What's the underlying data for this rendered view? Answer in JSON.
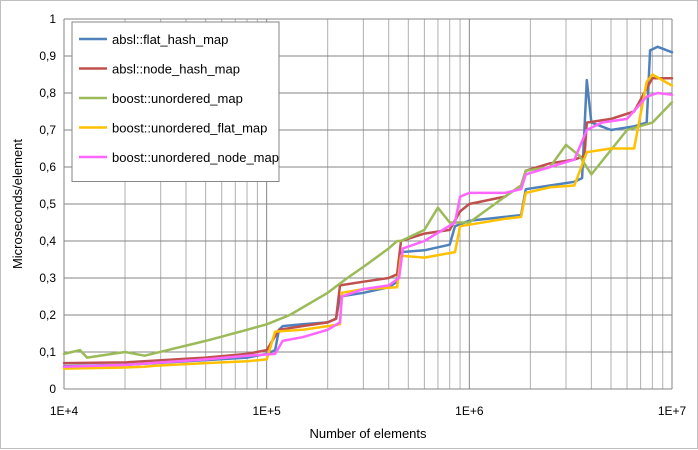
{
  "chart_data": {
    "type": "line",
    "xlabel": "Number of elements",
    "ylabel": "Microseconds/element",
    "xscale": "log",
    "xlim": [
      10000,
      10000000
    ],
    "ylim": [
      0,
      1
    ],
    "x_tick_labels": [
      "1E+4",
      "1E+5",
      "1E+6",
      "1E+7"
    ],
    "y_tick_labels": [
      "0",
      "0,1",
      "0,2",
      "0,3",
      "0,4",
      "0,5",
      "0,6",
      "0,7",
      "0,8",
      "0,9",
      "1"
    ],
    "grid": true,
    "legend_position": "top-left",
    "series": [
      {
        "name": "absl::flat_hash_map",
        "color": "#4f81bd",
        "points": [
          [
            10000,
            0.062
          ],
          [
            20000,
            0.065
          ],
          [
            50000,
            0.078
          ],
          [
            80000,
            0.085
          ],
          [
            100000,
            0.095
          ],
          [
            110000,
            0.105
          ],
          [
            115000,
            0.16
          ],
          [
            120000,
            0.17
          ],
          [
            150000,
            0.175
          ],
          [
            200000,
            0.18
          ],
          [
            220000,
            0.19
          ],
          [
            230000,
            0.25
          ],
          [
            300000,
            0.26
          ],
          [
            400000,
            0.275
          ],
          [
            440000,
            0.29
          ],
          [
            460000,
            0.37
          ],
          [
            600000,
            0.375
          ],
          [
            800000,
            0.39
          ],
          [
            850000,
            0.44
          ],
          [
            1000000,
            0.455
          ],
          [
            1500000,
            0.465
          ],
          [
            1800000,
            0.47
          ],
          [
            1900000,
            0.54
          ],
          [
            2500000,
            0.55
          ],
          [
            3300000,
            0.56
          ],
          [
            3600000,
            0.57
          ],
          [
            3800000,
            0.835
          ],
          [
            4000000,
            0.72
          ],
          [
            5000000,
            0.7
          ],
          [
            6500000,
            0.71
          ],
          [
            7500000,
            0.72
          ],
          [
            7800000,
            0.915
          ],
          [
            8500000,
            0.925
          ],
          [
            10000000,
            0.91
          ]
        ]
      },
      {
        "name": "absl::node_hash_map",
        "color": "#c0504d",
        "points": [
          [
            10000,
            0.07
          ],
          [
            20000,
            0.072
          ],
          [
            50000,
            0.085
          ],
          [
            80000,
            0.095
          ],
          [
            100000,
            0.105
          ],
          [
            115000,
            0.16
          ],
          [
            150000,
            0.17
          ],
          [
            200000,
            0.18
          ],
          [
            220000,
            0.19
          ],
          [
            230000,
            0.28
          ],
          [
            300000,
            0.29
          ],
          [
            400000,
            0.3
          ],
          [
            440000,
            0.31
          ],
          [
            460000,
            0.4
          ],
          [
            600000,
            0.42
          ],
          [
            800000,
            0.43
          ],
          [
            900000,
            0.48
          ],
          [
            1000000,
            0.5
          ],
          [
            1500000,
            0.52
          ],
          [
            1800000,
            0.55
          ],
          [
            1900000,
            0.59
          ],
          [
            2500000,
            0.61
          ],
          [
            3300000,
            0.62
          ],
          [
            3700000,
            0.63
          ],
          [
            3800000,
            0.72
          ],
          [
            5000000,
            0.73
          ],
          [
            6500000,
            0.75
          ],
          [
            8000000,
            0.84
          ],
          [
            10000000,
            0.84
          ]
        ]
      },
      {
        "name": "boost::unordered_map",
        "color": "#9bbb59",
        "points": [
          [
            10000,
            0.095
          ],
          [
            12000,
            0.105
          ],
          [
            13000,
            0.085
          ],
          [
            20000,
            0.1
          ],
          [
            25000,
            0.09
          ],
          [
            50000,
            0.13
          ],
          [
            80000,
            0.16
          ],
          [
            100000,
            0.175
          ],
          [
            130000,
            0.2
          ],
          [
            200000,
            0.26
          ],
          [
            250000,
            0.3
          ],
          [
            300000,
            0.33
          ],
          [
            400000,
            0.38
          ],
          [
            440000,
            0.4
          ],
          [
            460000,
            0.4
          ],
          [
            600000,
            0.43
          ],
          [
            700000,
            0.49
          ],
          [
            800000,
            0.45
          ],
          [
            1000000,
            0.45
          ],
          [
            1500000,
            0.52
          ],
          [
            1800000,
            0.55
          ],
          [
            1900000,
            0.59
          ],
          [
            2500000,
            0.6
          ],
          [
            3000000,
            0.66
          ],
          [
            3500000,
            0.63
          ],
          [
            4000000,
            0.58
          ],
          [
            6000000,
            0.7
          ],
          [
            8000000,
            0.72
          ],
          [
            10000000,
            0.775
          ]
        ]
      },
      {
        "name": "boost::unordered_flat_map",
        "color": "#ffc000",
        "points": [
          [
            10000,
            0.055
          ],
          [
            20000,
            0.058
          ],
          [
            25000,
            0.06
          ],
          [
            28000,
            0.063
          ],
          [
            50000,
            0.07
          ],
          [
            80000,
            0.075
          ],
          [
            100000,
            0.08
          ],
          [
            110000,
            0.155
          ],
          [
            150000,
            0.16
          ],
          [
            200000,
            0.17
          ],
          [
            230000,
            0.175
          ],
          [
            235000,
            0.26
          ],
          [
            300000,
            0.27
          ],
          [
            440000,
            0.275
          ],
          [
            460000,
            0.36
          ],
          [
            600000,
            0.355
          ],
          [
            850000,
            0.37
          ],
          [
            900000,
            0.44
          ],
          [
            1500000,
            0.46
          ],
          [
            1800000,
            0.465
          ],
          [
            1900000,
            0.53
          ],
          [
            2500000,
            0.545
          ],
          [
            3300000,
            0.55
          ],
          [
            3800000,
            0.64
          ],
          [
            5000000,
            0.65
          ],
          [
            6500000,
            0.65
          ],
          [
            7500000,
            0.83
          ],
          [
            8000000,
            0.85
          ],
          [
            10000000,
            0.82
          ]
        ]
      },
      {
        "name": "boost::unordered_node_map",
        "color": "#ff66ff",
        "points": [
          [
            10000,
            0.06
          ],
          [
            20000,
            0.065
          ],
          [
            50000,
            0.08
          ],
          [
            80000,
            0.09
          ],
          [
            110000,
            0.095
          ],
          [
            120000,
            0.13
          ],
          [
            150000,
            0.14
          ],
          [
            200000,
            0.16
          ],
          [
            230000,
            0.18
          ],
          [
            235000,
            0.25
          ],
          [
            300000,
            0.27
          ],
          [
            400000,
            0.28
          ],
          [
            450000,
            0.3
          ],
          [
            470000,
            0.38
          ],
          [
            600000,
            0.4
          ],
          [
            850000,
            0.45
          ],
          [
            900000,
            0.52
          ],
          [
            1000000,
            0.53
          ],
          [
            1500000,
            0.53
          ],
          [
            1800000,
            0.54
          ],
          [
            1900000,
            0.58
          ],
          [
            2500000,
            0.6
          ],
          [
            3300000,
            0.62
          ],
          [
            3800000,
            0.7
          ],
          [
            4500000,
            0.72
          ],
          [
            6000000,
            0.73
          ],
          [
            7500000,
            0.79
          ],
          [
            8500000,
            0.8
          ],
          [
            10000000,
            0.795
          ]
        ]
      }
    ]
  }
}
